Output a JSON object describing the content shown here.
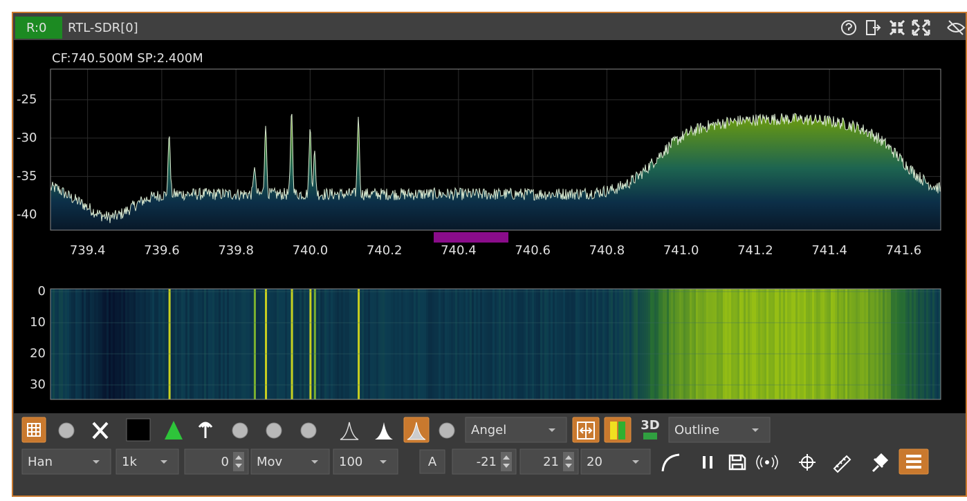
{
  "header": {
    "rx_label": "R:0",
    "device": "RTL-SDR[0]"
  },
  "spectrum": {
    "info": "CF:740.500M SP:2.400M",
    "power_ticks": [
      "-25",
      "-30",
      "-35",
      "-40"
    ],
    "freq_ticks": [
      "739.4",
      "739.6",
      "739.8",
      "740.0",
      "740.2",
      "740.4",
      "740.6",
      "740.8",
      "741.0",
      "741.2",
      "741.4",
      "741.6"
    ]
  },
  "waterfall": {
    "time_ticks": [
      "0",
      "10",
      "20",
      "30"
    ]
  },
  "toolbar": {
    "palette": "Angel",
    "waterfall_3d": "3D",
    "trace_style": "Outline",
    "window": "Han",
    "fft_size": "1k",
    "fft_overlap": "0",
    "averaging_mode": "Mov",
    "averaging": "100",
    "auto_button": "A",
    "ref_level": "-21",
    "range": "21",
    "fps": "20"
  }
}
